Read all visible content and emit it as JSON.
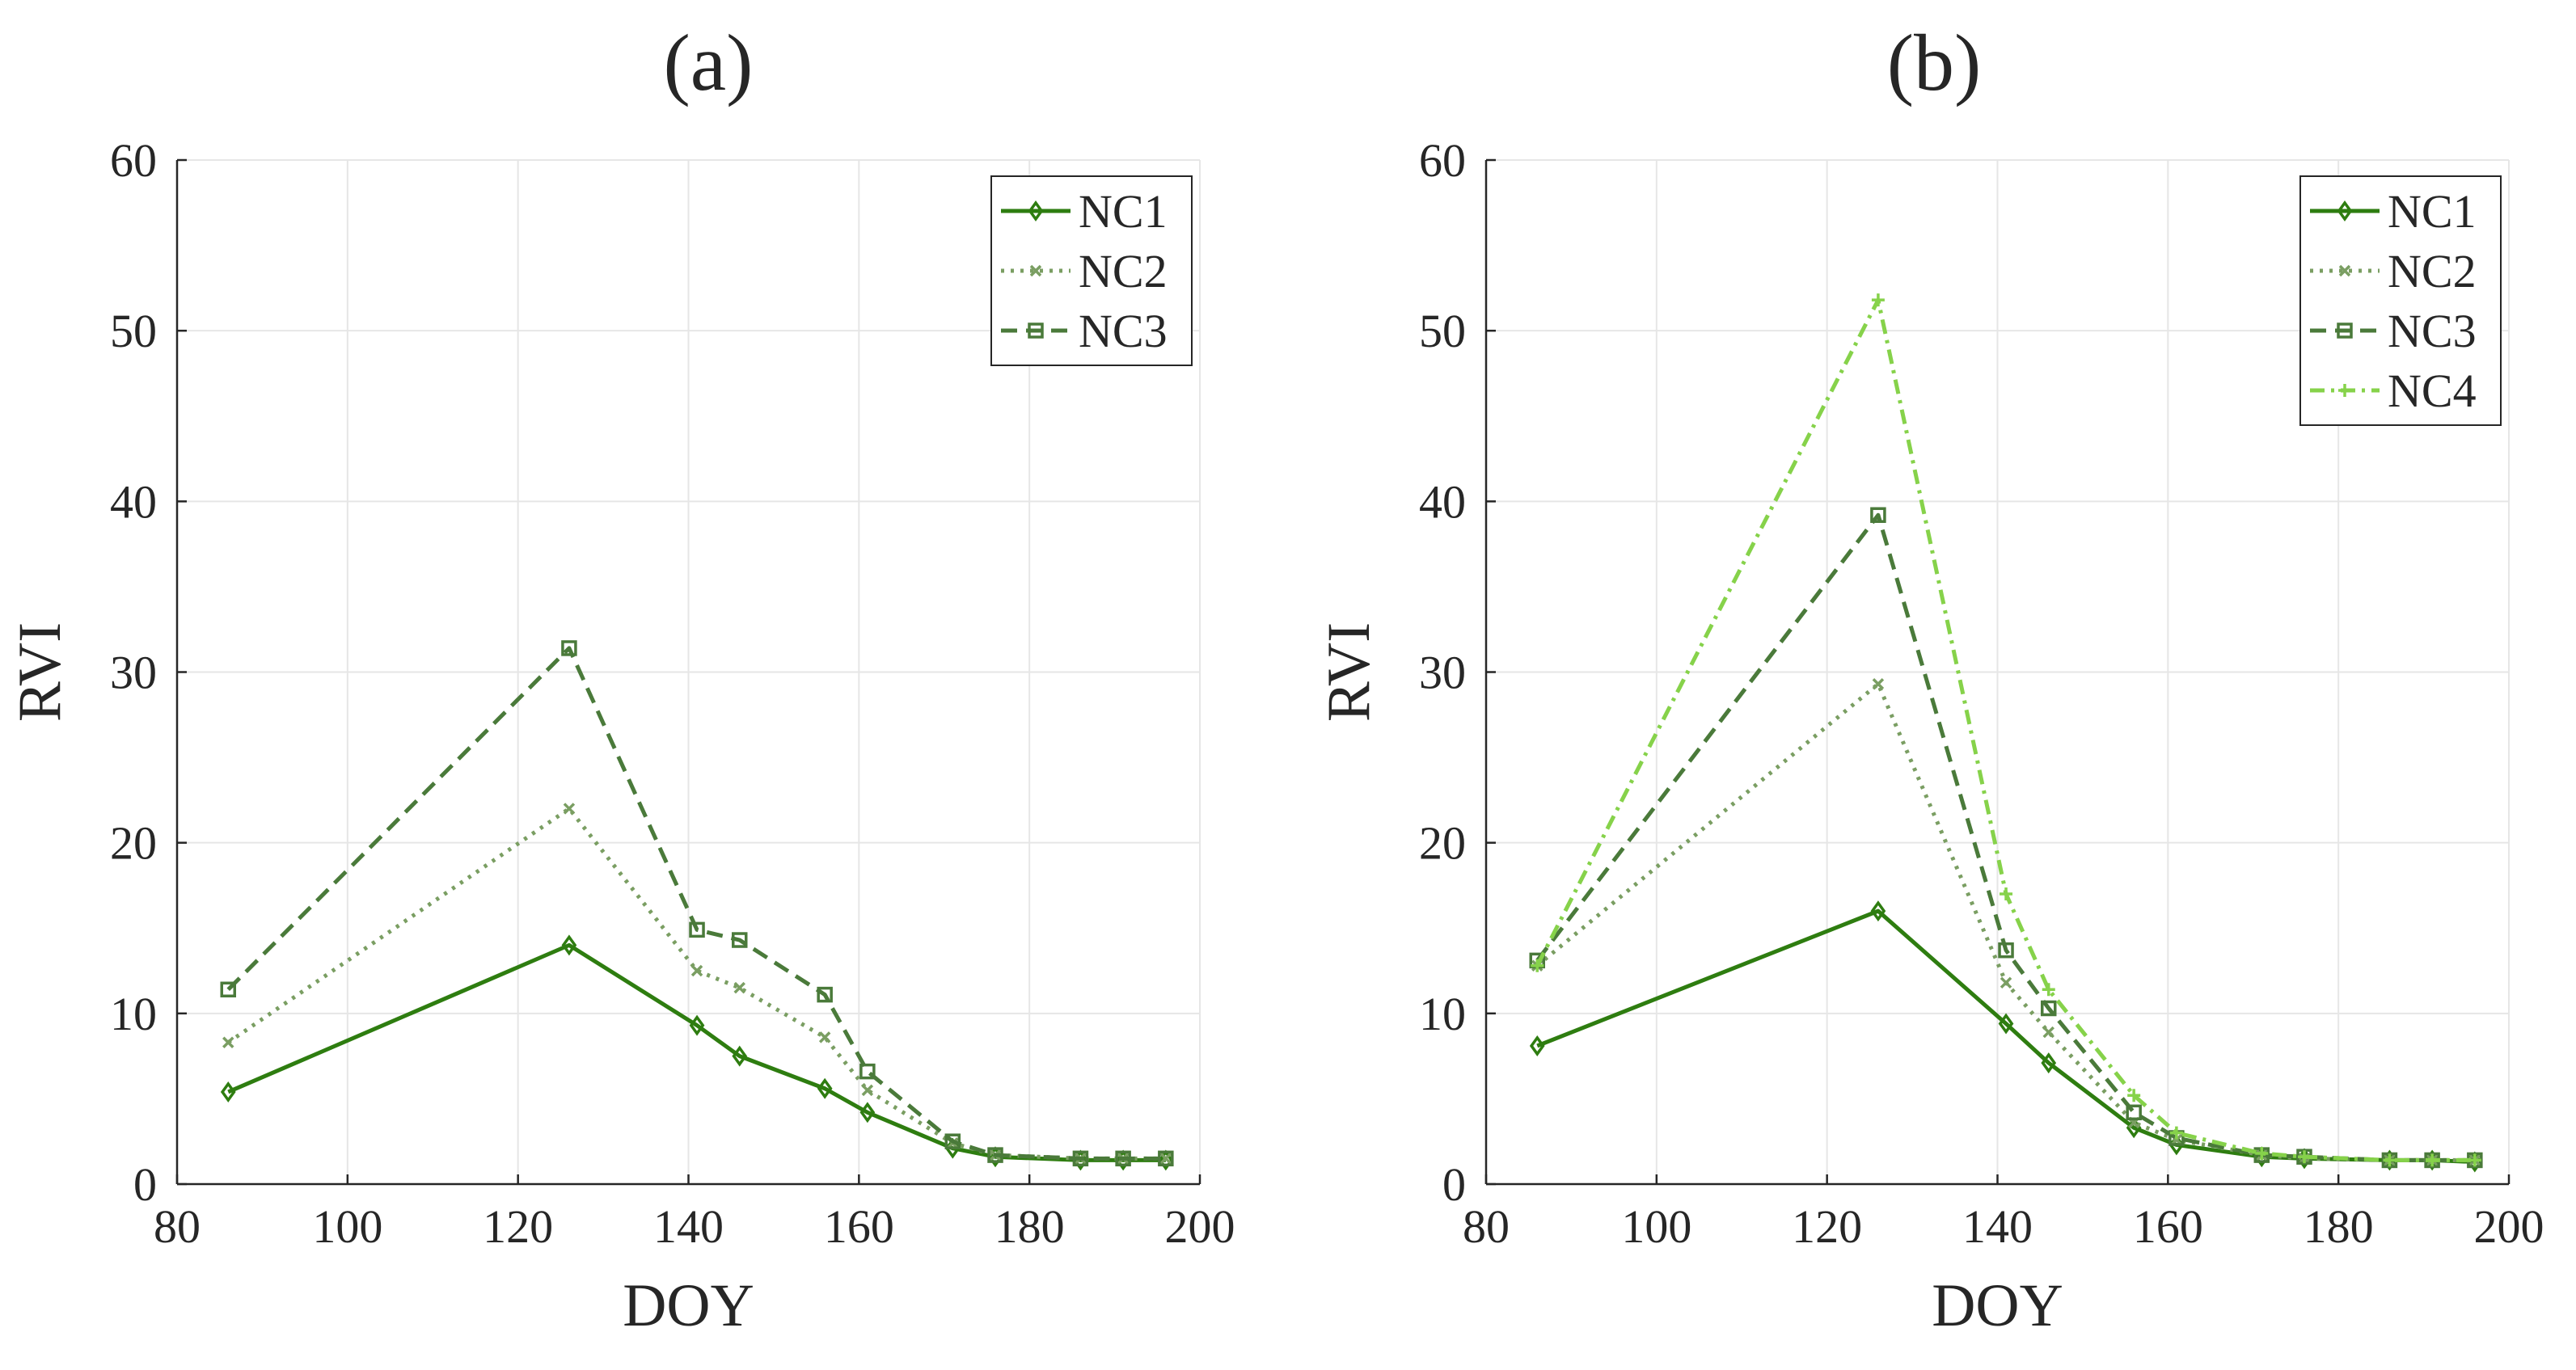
{
  "chart_data": [
    {
      "type": "line",
      "panel_label": "(a)",
      "xlabel": "DOY",
      "ylabel": "RVI",
      "xlim": [
        80,
        200
      ],
      "ylim": [
        0,
        60
      ],
      "xticks": [
        80,
        100,
        120,
        140,
        160,
        180,
        200
      ],
      "yticks": [
        0,
        10,
        20,
        30,
        40,
        50,
        60
      ],
      "grid": true,
      "legend_position": "top-right",
      "x": [
        86,
        126,
        141,
        146,
        156,
        161,
        171,
        176,
        186,
        191,
        196
      ],
      "series": [
        {
          "name": "NC1",
          "color": "#2e7d10",
          "style": "solid",
          "marker": "diamond",
          "values": [
            5.4,
            14.0,
            9.3,
            7.5,
            5.6,
            4.2,
            2.1,
            1.6,
            1.4,
            1.4,
            1.4
          ]
        },
        {
          "name": "NC2",
          "color": "#7a9e62",
          "style": "dotted",
          "marker": "x",
          "values": [
            8.3,
            22.0,
            12.5,
            11.5,
            8.6,
            5.5,
            2.4,
            1.7,
            1.5,
            1.5,
            1.5
          ]
        },
        {
          "name": "NC3",
          "color": "#4a7a3a",
          "style": "dashed",
          "marker": "square",
          "values": [
            11.4,
            31.4,
            14.9,
            14.3,
            11.1,
            6.6,
            2.5,
            1.7,
            1.5,
            1.5,
            1.5
          ]
        }
      ]
    },
    {
      "type": "line",
      "panel_label": "(b)",
      "xlabel": "DOY",
      "ylabel": "RVI",
      "xlim": [
        80,
        200
      ],
      "ylim": [
        0,
        60
      ],
      "xticks": [
        80,
        100,
        120,
        140,
        160,
        180,
        200
      ],
      "yticks": [
        0,
        10,
        20,
        30,
        40,
        50,
        60
      ],
      "grid": true,
      "legend_position": "top-right",
      "x": [
        86,
        126,
        141,
        146,
        156,
        161,
        171,
        176,
        186,
        191,
        196
      ],
      "series": [
        {
          "name": "NC1",
          "color": "#2e7d10",
          "style": "solid",
          "marker": "diamond",
          "values": [
            8.1,
            16.0,
            9.4,
            7.1,
            3.3,
            2.3,
            1.6,
            1.5,
            1.4,
            1.4,
            1.3
          ]
        },
        {
          "name": "NC2",
          "color": "#7a9e62",
          "style": "dotted",
          "marker": "x",
          "values": [
            12.8,
            29.3,
            11.8,
            8.9,
            3.6,
            2.6,
            1.7,
            1.5,
            1.4,
            1.4,
            1.4
          ]
        },
        {
          "name": "NC3",
          "color": "#4a7a3a",
          "style": "dashed",
          "marker": "square",
          "values": [
            13.1,
            39.2,
            13.7,
            10.3,
            4.2,
            2.7,
            1.7,
            1.6,
            1.4,
            1.4,
            1.4
          ]
        },
        {
          "name": "NC4",
          "color": "#86d24a",
          "style": "dashdot",
          "marker": "plus",
          "values": [
            12.8,
            51.8,
            17.0,
            11.4,
            5.2,
            3.0,
            1.8,
            1.6,
            1.4,
            1.4,
            1.4
          ]
        }
      ]
    }
  ]
}
